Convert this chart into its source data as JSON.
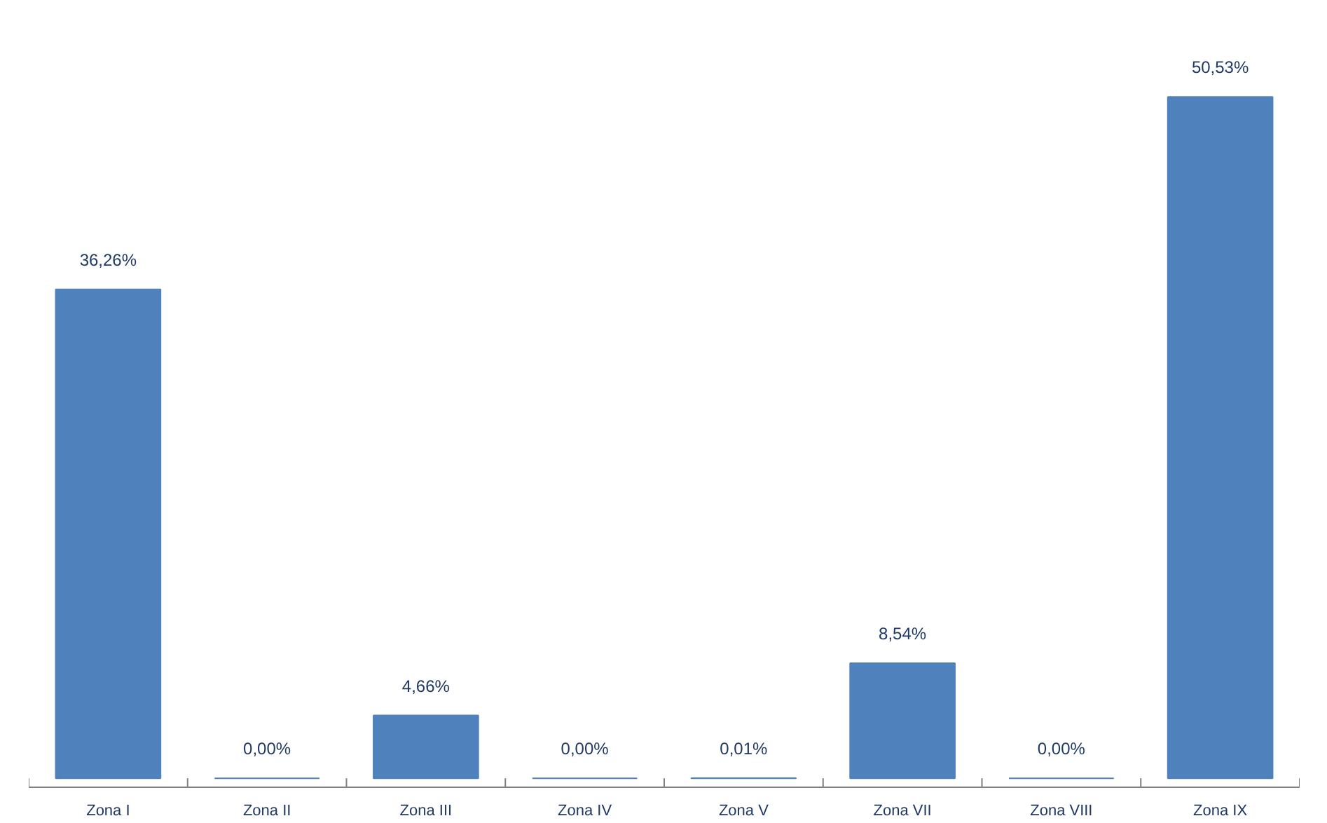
{
  "chart_data": {
    "type": "bar",
    "categories": [
      "Zona I",
      "Zona II",
      "Zona III",
      "Zona IV",
      "Zona V",
      "Zona VII",
      "Zona VIII",
      "Zona IX"
    ],
    "values": [
      36.26,
      0.0,
      4.66,
      0.0,
      0.01,
      8.54,
      0.0,
      50.53
    ],
    "value_labels": [
      "36,26%",
      "0,00%",
      "4,66%",
      "0,00%",
      "0,01%",
      "8,54%",
      "0,00%",
      "50,53%"
    ],
    "color": "#4f81bd",
    "grid": false
  }
}
